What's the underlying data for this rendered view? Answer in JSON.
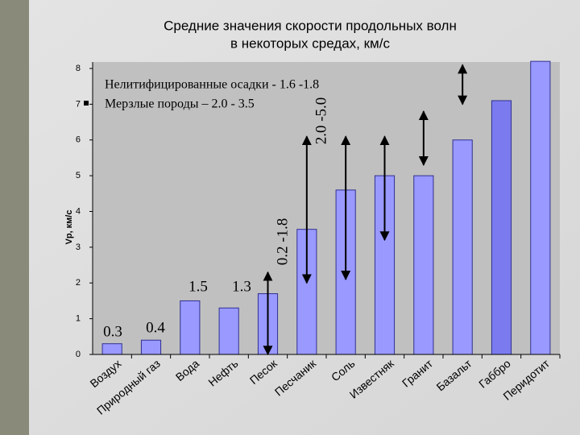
{
  "chart_data": {
    "type": "bar",
    "title": "Средние значения скорости продольных волн",
    "subtitle": "в некоторых средах, км/с",
    "y_label": "Vp, км/с",
    "categories": [
      "Воздух",
      "Природный газ",
      "Вода",
      "Нефть",
      "Песок",
      "Песчаник",
      "Соль",
      "Известняк",
      "Гранит",
      "Базальт",
      "Габбро",
      "Перидотит"
    ],
    "values": [
      0.3,
      0.4,
      1.5,
      1.3,
      1.7,
      3.5,
      4.6,
      5.0,
      5.0,
      6.0,
      7.1,
      8.2
    ],
    "colors": [
      "#9999ff",
      "#9999ff",
      "#9999ff",
      "#9999ff",
      "#9999ff",
      "#9999ff",
      "#9999ff",
      "#9999ff",
      "#9999ff",
      "#9999ff",
      "#7b7bef",
      "#9999ff"
    ],
    "ranges": [
      null,
      null,
      null,
      null,
      [
        0.0,
        2.3
      ],
      [
        2.0,
        6.1
      ],
      [
        2.1,
        6.1
      ],
      [
        3.2,
        6.1
      ],
      [
        5.3,
        6.8
      ],
      [
        7.0,
        8.1
      ],
      null,
      null
    ],
    "ylim": [
      0,
      8
    ],
    "yticks": [
      0,
      1,
      2,
      3,
      4,
      5,
      6,
      7,
      8
    ],
    "annotations": [
      "0.3",
      "0.4",
      "1.5",
      "1.3",
      "0.2 -1.8",
      "2.0 -5.0"
    ],
    "legend": [
      "Нелитифицированные осадки  - 1.6 -1.8",
      "Мерзлые породы – 2.0 - 3.5"
    ]
  }
}
